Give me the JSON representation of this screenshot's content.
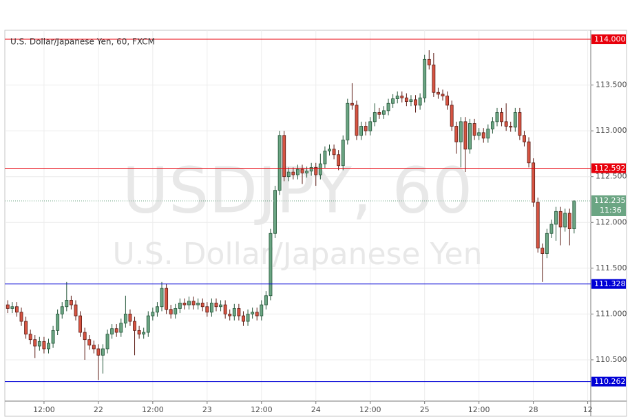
{
  "chart_data": {
    "type": "candlestick",
    "title": "U.S. Dollar/Japanese Yen, 60, FXCM",
    "watermark": [
      "USDJPY, 60",
      "U.S. Dollar/Japanese Yen"
    ],
    "up_color": "#6ba583",
    "down_color": "#d75442",
    "open": [
      111.1,
      111.06,
      111.08,
      111.02,
      110.92,
      110.78,
      110.72,
      110.65,
      110.7,
      110.62,
      110.68,
      110.82,
      111.0,
      111.08,
      111.15,
      111.1,
      110.98,
      110.8,
      110.72,
      110.66,
      110.62,
      110.55,
      110.62,
      110.78,
      110.84,
      110.8,
      110.9,
      111.0,
      110.92,
      110.82,
      110.78,
      110.8,
      110.98,
      111.02,
      111.08,
      111.28,
      111.05,
      111.0,
      111.06,
      111.12,
      111.1,
      111.14,
      111.1,
      111.12,
      111.08,
      111.02,
      111.12,
      111.08,
      111.1,
      111.0,
      110.98,
      111.06,
      110.98,
      110.92,
      111.0,
      111.02,
      110.98,
      111.1,
      111.2,
      111.88,
      112.35,
      112.95,
      112.5,
      112.55,
      112.52,
      112.58,
      112.54,
      112.56,
      112.6,
      112.52,
      112.64,
      112.78,
      112.8,
      112.74,
      112.62,
      112.9,
      113.3,
      113.28,
      112.95,
      113.05,
      113.0,
      113.1,
      113.2,
      113.18,
      113.22,
      113.3,
      113.35,
      113.38,
      113.36,
      113.32,
      113.34,
      113.28,
      113.36,
      113.78,
      113.72,
      113.42,
      113.4,
      113.38,
      113.28,
      113.05,
      112.88,
      113.1,
      112.8,
      113.08,
      112.95,
      112.98,
      112.92,
      113.02,
      113.1,
      113.2,
      113.1,
      113.05,
      113.04,
      113.2,
      112.95,
      112.88,
      112.65,
      112.22,
      111.72,
      111.66,
      111.88,
      111.98,
      112.12,
      111.95,
      112.1,
      111.93
    ],
    "high": [
      111.15,
      111.13,
      111.13,
      111.07,
      110.97,
      110.83,
      110.77,
      110.75,
      110.75,
      110.73,
      110.87,
      111.05,
      111.13,
      111.35,
      111.2,
      111.15,
      111.03,
      110.85,
      110.77,
      110.71,
      110.67,
      110.67,
      110.83,
      110.89,
      110.89,
      110.95,
      111.2,
      111.05,
      110.97,
      110.87,
      110.85,
      111.03,
      111.07,
      111.13,
      111.35,
      111.33,
      111.1,
      111.11,
      111.17,
      111.17,
      111.19,
      111.19,
      111.17,
      111.17,
      111.13,
      111.17,
      111.17,
      111.15,
      111.15,
      111.05,
      111.11,
      111.11,
      111.03,
      111.05,
      111.07,
      111.07,
      111.15,
      111.25,
      111.93,
      112.4,
      113.0,
      113.0,
      112.6,
      112.6,
      112.63,
      112.63,
      112.61,
      112.65,
      112.65,
      112.75,
      112.83,
      112.85,
      112.85,
      112.79,
      112.95,
      113.35,
      113.52,
      113.33,
      113.1,
      113.1,
      113.15,
      113.3,
      113.25,
      113.27,
      113.35,
      113.4,
      113.43,
      113.43,
      113.41,
      113.39,
      113.39,
      113.41,
      113.83,
      113.88,
      113.85,
      113.47,
      113.45,
      113.43,
      113.33,
      113.1,
      113.15,
      113.15,
      113.13,
      113.13,
      113.03,
      113.03,
      113.07,
      113.15,
      113.25,
      113.25,
      113.3,
      113.1,
      113.25,
      113.25,
      113.0,
      112.93,
      112.7,
      112.27,
      111.77,
      111.93,
      112.03,
      112.17,
      112.17,
      112.15,
      112.15,
      112.24
    ],
    "low": [
      111.01,
      111.01,
      110.97,
      110.87,
      110.73,
      110.67,
      110.52,
      110.6,
      110.57,
      110.57,
      110.63,
      110.77,
      110.95,
      111.03,
      111.05,
      110.93,
      110.75,
      110.5,
      110.61,
      110.57,
      110.28,
      110.35,
      110.57,
      110.73,
      110.75,
      110.75,
      110.85,
      110.87,
      110.55,
      110.73,
      110.73,
      110.75,
      110.93,
      110.97,
      111.03,
      111.0,
      110.95,
      110.95,
      111.01,
      111.05,
      111.05,
      111.05,
      111.05,
      111.03,
      110.97,
      110.97,
      111.03,
      111.03,
      110.95,
      110.93,
      110.93,
      110.93,
      110.87,
      110.87,
      110.95,
      110.93,
      110.93,
      111.05,
      111.15,
      111.83,
      112.3,
      112.45,
      112.45,
      112.47,
      112.47,
      112.42,
      112.49,
      112.51,
      112.4,
      112.47,
      112.59,
      112.73,
      112.69,
      112.57,
      112.57,
      112.85,
      113.23,
      112.9,
      112.9,
      112.95,
      112.95,
      113.05,
      113.13,
      113.13,
      113.17,
      113.25,
      113.3,
      113.31,
      113.27,
      113.27,
      113.2,
      113.23,
      113.31,
      113.67,
      113.37,
      113.35,
      113.33,
      113.23,
      113.0,
      112.75,
      112.6,
      112.55,
      112.75,
      112.9,
      112.9,
      112.87,
      112.87,
      112.97,
      113.05,
      113.05,
      113.0,
      112.99,
      112.99,
      112.9,
      112.83,
      112.6,
      112.17,
      111.67,
      111.35,
      111.61,
      111.83,
      111.8,
      111.75,
      111.9,
      111.75,
      111.88
    ],
    "close": [
      111.06,
      111.08,
      111.02,
      110.92,
      110.78,
      110.72,
      110.65,
      110.7,
      110.62,
      110.68,
      110.82,
      111.0,
      111.08,
      111.15,
      111.1,
      110.98,
      110.8,
      110.72,
      110.66,
      110.62,
      110.55,
      110.62,
      110.78,
      110.84,
      110.8,
      110.9,
      111.0,
      110.92,
      110.82,
      110.78,
      110.8,
      110.98,
      111.02,
      111.08,
      111.28,
      111.05,
      111.0,
      111.06,
      111.12,
      111.1,
      111.14,
      111.1,
      111.12,
      111.08,
      111.02,
      111.12,
      111.08,
      111.1,
      111.0,
      110.98,
      111.06,
      110.98,
      110.92,
      111.0,
      111.02,
      110.98,
      111.1,
      111.2,
      111.88,
      112.35,
      112.95,
      112.5,
      112.55,
      112.52,
      112.58,
      112.54,
      112.56,
      112.6,
      112.52,
      112.64,
      112.78,
      112.8,
      112.74,
      112.62,
      112.9,
      113.3,
      113.28,
      112.95,
      113.05,
      113.0,
      113.1,
      113.2,
      113.18,
      113.22,
      113.3,
      113.35,
      113.38,
      113.36,
      113.32,
      113.34,
      113.28,
      113.36,
      113.78,
      113.72,
      113.42,
      113.4,
      113.38,
      113.28,
      113.05,
      112.88,
      113.1,
      112.8,
      113.08,
      112.95,
      112.98,
      112.92,
      113.02,
      113.1,
      113.2,
      113.1,
      113.05,
      113.04,
      113.2,
      112.95,
      112.88,
      112.65,
      112.22,
      111.72,
      111.66,
      111.88,
      111.98,
      112.12,
      111.95,
      112.1,
      111.93,
      112.235
    ],
    "xlim": [
      -0.65,
      128.67
    ],
    "xticks": [
      {
        "value": 8,
        "label": "12:00"
      },
      {
        "value": 20,
        "label": "22"
      },
      {
        "value": 32,
        "label": "12:00"
      },
      {
        "value": 44,
        "label": "23"
      },
      {
        "value": 56,
        "label": "12:00"
      },
      {
        "value": 68,
        "label": "24"
      },
      {
        "value": 80,
        "label": "12:00"
      },
      {
        "value": 92,
        "label": "25"
      },
      {
        "value": 104,
        "label": "12:00"
      },
      {
        "value": 116,
        "label": "28"
      },
      {
        "value": 128,
        "label": "12"
      }
    ],
    "ylim": [
      110.049,
      114.098
    ],
    "yticks": [
      {
        "value": 110.5,
        "label": "110.500"
      },
      {
        "value": 111,
        "label": "111.000"
      },
      {
        "value": 111.5,
        "label": "111.500"
      },
      {
        "value": 112,
        "label": "112.000"
      },
      {
        "value": 112.5,
        "label": "112.500"
      },
      {
        "value": 113,
        "label": "113.000"
      },
      {
        "value": 113.5,
        "label": "113.500"
      }
    ],
    "grid": true,
    "levels": [
      {
        "value": 114,
        "label": "114.000",
        "color": "#e8000b"
      },
      {
        "value": 112.592,
        "label": "112.592",
        "color": "#e8000b"
      },
      {
        "value": 111.328,
        "label": "111.328",
        "color": "#0000d6"
      },
      {
        "value": 110.262,
        "label": "110.262",
        "color": "#0000d6"
      }
    ],
    "last_price": {
      "value": 112.235,
      "color": "#6ba583",
      "countdown": "11:36"
    }
  }
}
